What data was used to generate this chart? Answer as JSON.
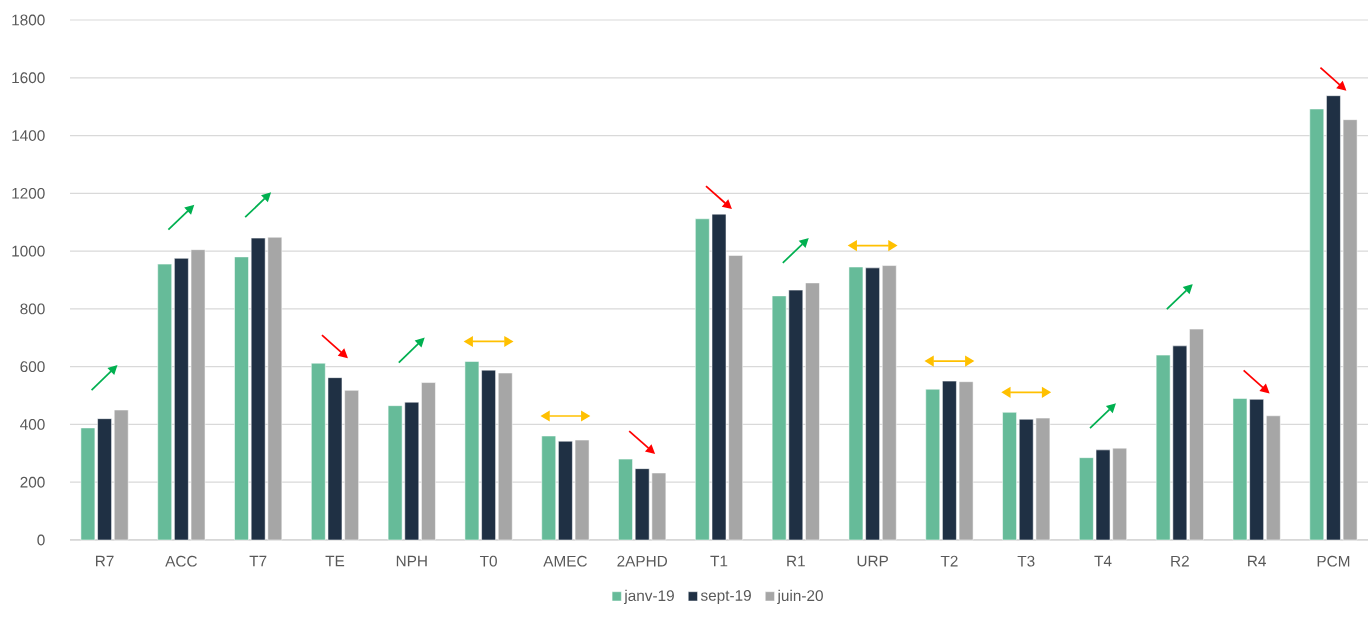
{
  "chart_data": {
    "type": "bar",
    "categories": [
      "R7",
      "ACC",
      "T7",
      "TE",
      "NPH",
      "T0",
      "AMEC",
      "2APHD",
      "T1",
      "R1",
      "URP",
      "T2",
      "T3",
      "T4",
      "R2",
      "R4",
      "PCM"
    ],
    "series": [
      {
        "name": "janv-19",
        "color": "#66bb99",
        "values": [
          388,
          955,
          980,
          612,
          465,
          618,
          360,
          280,
          1112,
          845,
          945,
          522,
          442,
          285,
          640,
          490,
          1492
        ]
      },
      {
        "name": "sept-19",
        "color": "#1f3044",
        "values": [
          420,
          975,
          1045,
          562,
          477,
          588,
          342,
          247,
          1128,
          865,
          942,
          550,
          418,
          312,
          672,
          487,
          1538
        ]
      },
      {
        "name": "juin-20",
        "color": "#a6a6a6",
        "values": [
          450,
          1005,
          1048,
          518,
          545,
          578,
          346,
          232,
          985,
          890,
          950,
          548,
          422,
          318,
          730,
          430,
          1455
        ]
      }
    ],
    "ylim": [
      0,
      1800
    ],
    "yticks": [
      0,
      200,
      400,
      600,
      800,
      1000,
      1200,
      1400,
      1600,
      1800
    ],
    "grid": "y",
    "legend": "bottom"
  }
}
